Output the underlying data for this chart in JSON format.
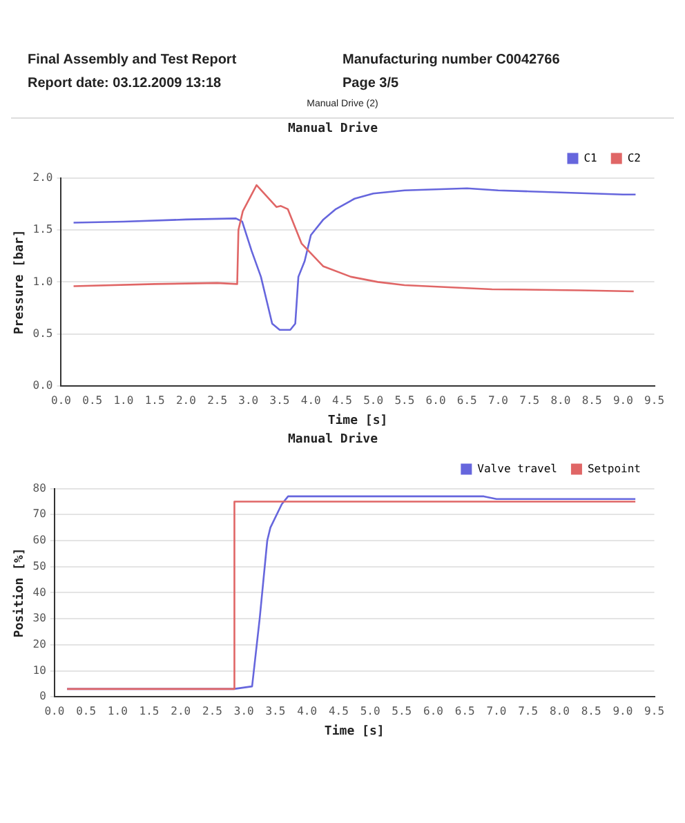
{
  "chart_data": [
    {
      "type": "line",
      "title": "Manual Drive",
      "annotations": [
        "Final Assembly and Test Report",
        "Manufacturing number C0042766",
        "Report date: 03.12.2009 13:18",
        "Page 3/5",
        "Manual Drive (2)"
      ],
      "xlabel": "Time [s]",
      "ylabel": "Pressure [bar]",
      "xlim": [
        0,
        9.5
      ],
      "ylim": [
        0,
        2
      ],
      "xticks": [
        {
          "value": 0,
          "label": "0.0"
        },
        0.5,
        {
          "value": 1,
          "label": "1.0"
        },
        1.5,
        {
          "value": 2,
          "label": "2.0"
        },
        2.5,
        {
          "value": 3,
          "label": "3.0"
        },
        3.5,
        {
          "value": 4,
          "label": "4.0"
        },
        4.5,
        {
          "value": 5,
          "label": "5.0"
        },
        5.5,
        {
          "value": 6,
          "label": "6.0"
        },
        6.5,
        {
          "value": 7,
          "label": "7.0"
        },
        7.5,
        {
          "value": 8,
          "label": "8.0"
        },
        8.5,
        {
          "value": 9,
          "label": "9.0"
        },
        9.5
      ],
      "yticks": [
        {
          "value": 0,
          "label": "0.0"
        },
        0.5,
        {
          "value": 1,
          "label": "1.0"
        },
        1.5,
        {
          "value": 2,
          "label": "2.0"
        }
      ],
      "grid": "y",
      "legend": "top right",
      "marker": "none",
      "line_style": "solid",
      "series": [
        {
          "name": "C1",
          "color": "#6666dd",
          "x": [
            0.2,
            1.0,
            2.0,
            2.8,
            2.9,
            3.05,
            3.2,
            3.3,
            3.38,
            3.5,
            3.67,
            3.75,
            3.8,
            3.9,
            4.0,
            4.2,
            4.4,
            4.7,
            5.0,
            5.5,
            6.0,
            6.5,
            7.0,
            7.5,
            8.0,
            8.5,
            9.0,
            9.2
          ],
          "values": [
            1.57,
            1.58,
            1.6,
            1.61,
            1.58,
            1.3,
            1.05,
            0.8,
            0.6,
            0.54,
            0.54,
            0.6,
            1.05,
            1.2,
            1.45,
            1.6,
            1.7,
            1.8,
            1.85,
            1.88,
            1.89,
            1.9,
            1.88,
            1.87,
            1.86,
            1.85,
            1.84,
            1.84
          ]
        },
        {
          "name": "C2",
          "color": "#e06666",
          "x": [
            0.2,
            1.5,
            2.5,
            2.82,
            2.84,
            2.91,
            3.13,
            3.45,
            3.52,
            3.63,
            3.85,
            4.2,
            4.64,
            5.07,
            5.5,
            6.2,
            6.9,
            8.3,
            9.17
          ],
          "values": [
            0.96,
            0.98,
            0.99,
            0.98,
            1.5,
            1.68,
            1.93,
            1.72,
            1.73,
            1.7,
            1.37,
            1.15,
            1.05,
            1.0,
            0.97,
            0.95,
            0.93,
            0.92,
            0.91
          ]
        }
      ]
    },
    {
      "type": "line",
      "title": "Manual Drive",
      "xlabel": "Time [s]",
      "ylabel": "Position [%]",
      "xlim": [
        0,
        9.5
      ],
      "ylim": [
        0,
        80
      ],
      "xticks": [
        {
          "value": 0,
          "label": "0.0"
        },
        0.5,
        {
          "value": 1,
          "label": "1.0"
        },
        1.5,
        {
          "value": 2,
          "label": "2.0"
        },
        2.5,
        {
          "value": 3,
          "label": "3.0"
        },
        3.5,
        {
          "value": 4,
          "label": "4.0"
        },
        4.5,
        {
          "value": 5,
          "label": "5.0"
        },
        5.5,
        {
          "value": 6,
          "label": "6.0"
        },
        6.5,
        {
          "value": 7,
          "label": "7.0"
        },
        7.5,
        {
          "value": 8,
          "label": "8.0"
        },
        8.5,
        {
          "value": 9,
          "label": "9.0"
        },
        9.5
      ],
      "yticks": [
        0,
        10,
        20,
        30,
        40,
        50,
        60,
        70,
        80
      ],
      "grid": "y",
      "legend": "top right",
      "marker": "none",
      "line_style": "solid",
      "series": [
        {
          "name": "Valve travel",
          "color": "#6666dd",
          "x": [
            0.2,
            2.84,
            3.13,
            3.25,
            3.37,
            3.42,
            3.6,
            3.7,
            6.8,
            7.0,
            9.2
          ],
          "values": [
            3,
            3,
            4,
            30,
            60,
            65,
            74,
            77,
            77,
            76,
            76
          ]
        },
        {
          "name": "Setpoint",
          "color": "#e06666",
          "x": [
            0.2,
            2.84,
            2.85,
            9.2
          ],
          "values": [
            3,
            3,
            75,
            75
          ]
        }
      ]
    }
  ]
}
